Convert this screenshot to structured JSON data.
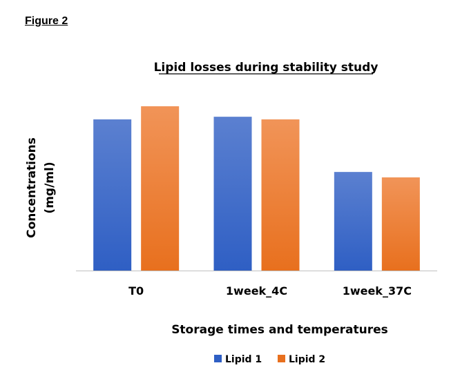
{
  "figure_label": "Figure 2",
  "colors": {
    "lipid1_top": "#5b80d0",
    "lipid1_bottom": "#2f5fc4",
    "lipid2_top": "#f19458",
    "lipid2_bottom": "#e8701e",
    "axis": "#bfbfbf"
  },
  "chart_data": {
    "type": "bar",
    "title": "Lipid losses during stability study",
    "xlabel": "Storage times and temperatures",
    "ylabel": [
      "Concentrations",
      "(mg/ml)"
    ],
    "categories": [
      "T0",
      "1week_4C",
      "1week_37C"
    ],
    "series": [
      {
        "name": "Lipid 1",
        "values": [
          0.92,
          0.936,
          0.6
        ]
      },
      {
        "name": "Lipid 2",
        "values": [
          1.0,
          0.92,
          0.567
        ]
      }
    ],
    "ylim": [
      0,
      1.05
    ],
    "y_ticks_shown": false,
    "grid": false,
    "legend": "bottom"
  }
}
